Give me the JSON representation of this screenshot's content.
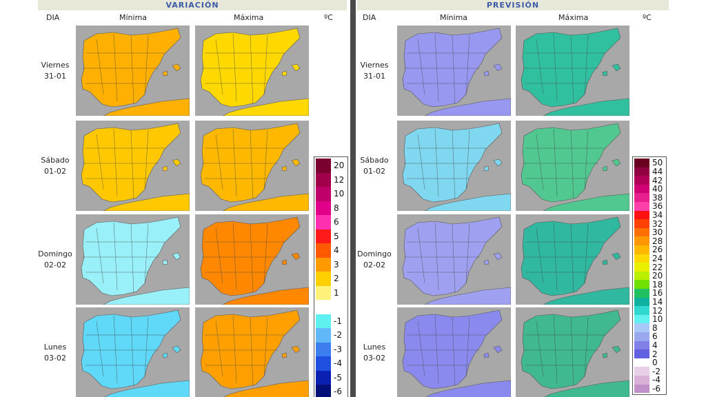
{
  "left_panel": {
    "title": "VARIACIÓN",
    "col_dia": "DIA",
    "col_min": "Mínima",
    "col_max": "Máxima",
    "unit": "ºC"
  },
  "right_panel": {
    "title": "PREVISIÓN",
    "col_dia": "DIA",
    "col_min": "Mínima",
    "col_max": "Máxima",
    "unit": "ºC"
  },
  "days": [
    {
      "name": "Viernes",
      "date": "31-01"
    },
    {
      "name": "Sábado",
      "date": "01-02"
    },
    {
      "name": "Domingo",
      "date": "02-02"
    },
    {
      "name": "Lunes",
      "date": "03-02"
    }
  ],
  "legend_variation": [
    {
      "label": "20",
      "color": "#7a0030"
    },
    {
      "label": "12",
      "color": "#a0004a"
    },
    {
      "label": "10",
      "color": "#c0006a"
    },
    {
      "label": "8",
      "color": "#e0008a"
    },
    {
      "label": "6",
      "color": "#ff30b0"
    },
    {
      "label": "5",
      "color": "#ff1a1a"
    },
    {
      "label": "4",
      "color": "#ff5a00"
    },
    {
      "label": "3",
      "color": "#ff9a00"
    },
    {
      "label": "2",
      "color": "#ffd000"
    },
    {
      "label": "1",
      "color": "#fff27a"
    },
    {
      "label": "",
      "color": "#ffffff"
    },
    {
      "label": "-1",
      "color": "#5ff0f0"
    },
    {
      "label": "-2",
      "color": "#60b8f8"
    },
    {
      "label": "-3",
      "color": "#3c7ef0"
    },
    {
      "label": "-4",
      "color": "#2050e0"
    },
    {
      "label": "-5",
      "color": "#0a20b0"
    },
    {
      "label": "-6",
      "color": "#04107a"
    }
  ],
  "legend_forecast": [
    {
      "label": "50",
      "color": "#6a0020"
    },
    {
      "label": "44",
      "color": "#900040"
    },
    {
      "label": "42",
      "color": "#b00058"
    },
    {
      "label": "40",
      "color": "#d00075"
    },
    {
      "label": "38",
      "color": "#e8208e"
    },
    {
      "label": "36",
      "color": "#ff40a8"
    },
    {
      "label": "34",
      "color": "#ff1010"
    },
    {
      "label": "32",
      "color": "#ff4000"
    },
    {
      "label": "30",
      "color": "#ff7000"
    },
    {
      "label": "28",
      "color": "#ff9800"
    },
    {
      "label": "26",
      "color": "#ffb800"
    },
    {
      "label": "24",
      "color": "#ffd800"
    },
    {
      "label": "22",
      "color": "#e8f000"
    },
    {
      "label": "20",
      "color": "#b8f000"
    },
    {
      "label": "18",
      "color": "#70e000"
    },
    {
      "label": "16",
      "color": "#20c060"
    },
    {
      "label": "14",
      "color": "#10b0a0"
    },
    {
      "label": "12",
      "color": "#30d8d0"
    },
    {
      "label": "10",
      "color": "#60f0f0"
    },
    {
      "label": "8",
      "color": "#a8c8f8"
    },
    {
      "label": "6",
      "color": "#9aa8f0"
    },
    {
      "label": "4",
      "color": "#8080e8"
    },
    {
      "label": "2",
      "color": "#6060e0"
    },
    {
      "label": "0",
      "color": "#ffffff"
    },
    {
      "label": "-2",
      "color": "#e8d0e8"
    },
    {
      "label": "-4",
      "color": "#d8b0d8"
    },
    {
      "label": "-6",
      "color": "#c090c8"
    }
  ],
  "map_fills": {
    "var_min": [
      "#ffb000",
      "#ffc800",
      "#9af0f8",
      "#60d8f8"
    ],
    "var_max": [
      "#ffd800",
      "#ffb800",
      "#ff8800",
      "#ffa000"
    ],
    "prev_min": [
      "#9898f0",
      "#80d8f0",
      "#a0a0f0",
      "#8a8aee"
    ],
    "prev_max": [
      "#30c0a0",
      "#50c890",
      "#30b8a0",
      "#40b890"
    ]
  }
}
